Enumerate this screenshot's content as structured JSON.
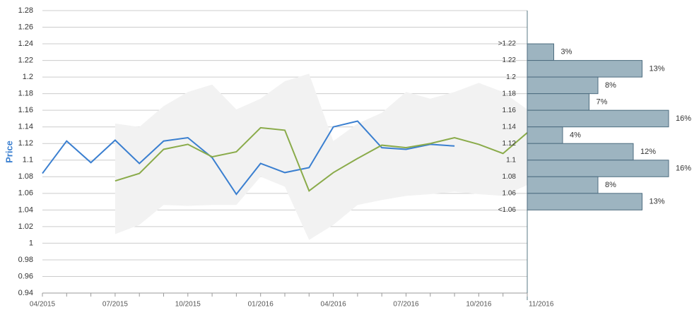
{
  "chart_data": [
    {
      "type": "line",
      "y_label": "Price",
      "categories": [
        "04/2015",
        null,
        null,
        "07/2015",
        null,
        null,
        "10/2015",
        null,
        null,
        "01/2016",
        null,
        null,
        "04/2016",
        null,
        null,
        "07/2016",
        null,
        null,
        "10/2016",
        null,
        "11/2016"
      ],
      "series": [
        {
          "color": "#3a7fd0",
          "values": [
            1.084,
            1.123,
            1.097,
            1.124,
            1.096,
            1.123,
            1.127,
            1.103,
            1.059,
            1.096,
            1.085,
            1.091,
            1.14,
            1.147,
            1.115,
            1.113,
            1.119,
            1.117,
            null,
            null,
            null
          ]
        },
        {
          "color": "#8aab4a",
          "values": [
            null,
            null,
            null,
            1.075,
            1.084,
            1.113,
            1.119,
            1.104,
            1.11,
            1.139,
            1.136,
            1.063,
            1.085,
            1.102,
            1.118,
            1.115,
            1.12,
            1.127,
            1.119,
            1.108,
            1.133
          ]
        }
      ],
      "band": {
        "color": "#f2f2f2",
        "upper": [
          null,
          null,
          null,
          1.144,
          1.14,
          1.165,
          1.182,
          1.191,
          1.161,
          1.174,
          1.195,
          1.204,
          1.123,
          1.144,
          1.157,
          1.182,
          1.174,
          1.182,
          1.193,
          1.182,
          1.161
        ],
        "lower": [
          null,
          null,
          null,
          1.011,
          1.022,
          1.046,
          1.045,
          1.046,
          1.046,
          1.08,
          1.068,
          1.004,
          1.022,
          1.046,
          1.052,
          1.057,
          1.059,
          1.062,
          1.059,
          1.057,
          1.07
        ]
      },
      "ylim": [
        0.94,
        1.28
      ],
      "yticks": [
        0.94,
        0.96,
        0.98,
        1,
        1.02,
        1.04,
        1.06,
        1.08,
        1.1,
        1.12,
        1.14,
        1.16,
        1.18,
        1.2,
        1.22,
        1.24,
        1.26,
        1.28
      ],
      "grid": true
    },
    {
      "type": "histogram",
      "orientation": "horizontal",
      "color": "#9db4c0",
      "edge_color": "#4e6d80",
      "bins": [
        {
          "value": 1.24,
          "label": ">1.22"
        },
        1.22,
        1.2,
        1.18,
        1.16,
        1.14,
        1.12,
        1.1,
        1.08,
        1.06,
        {
          "value": 1.04,
          "label": "<1.06"
        }
      ],
      "values": [
        3,
        13,
        8,
        7,
        16,
        4,
        12,
        16,
        8,
        13
      ],
      "value_labels": [
        "3%",
        "13%",
        "8%",
        "7%",
        "16%",
        "4%",
        "12%",
        "16%",
        "8%",
        "13%"
      ]
    }
  ]
}
